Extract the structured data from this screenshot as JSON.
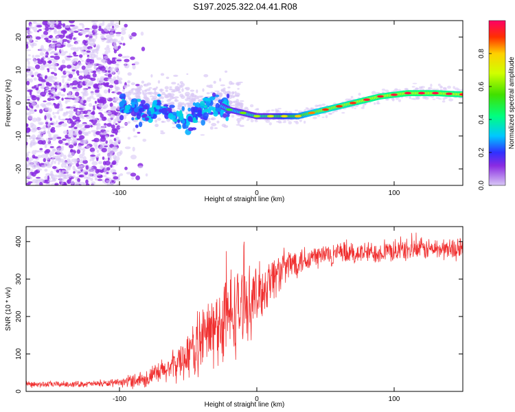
{
  "title": "S197.2025.322.04.41.R08",
  "colors": {
    "snr_line": "#f03030",
    "scatter": "#8a2be2",
    "axis": "#000000"
  },
  "chart_data": [
    {
      "type": "heatmap",
      "xlabel": "Height of straight line (km)",
      "ylabel": "Frequency (Hz)",
      "xlim": [
        -168,
        150
      ],
      "ylim": [
        -25,
        25
      ],
      "x_ticks": [
        -100,
        0,
        100
      ],
      "y_ticks": [
        -20,
        -10,
        0,
        10,
        20
      ],
      "x_tick_labels": [
        "-100",
        "0",
        "100"
      ],
      "y_tick_labels": [
        "-20",
        "-10",
        "0",
        "10",
        "20"
      ],
      "colorbar": {
        "label": "Normalized spectral amplitude",
        "range": [
          0,
          1
        ],
        "ticks": [
          0.0,
          0.2,
          0.4,
          0.6,
          0.8
        ],
        "tick_labels": [
          "0.0",
          "0.2",
          "0.4",
          "0.6",
          "0.8"
        ],
        "colormap": "rainbow"
      },
      "ridge_line": {
        "x": [
          -168,
          -100,
          -90,
          -80,
          -70,
          -60,
          -50,
          -40,
          -30,
          -20,
          -10,
          0,
          10,
          20,
          30,
          40,
          50,
          60,
          70,
          80,
          90,
          100,
          110,
          120,
          130,
          140,
          150
        ],
        "frequency": [
          0,
          0,
          -2,
          -3,
          -1,
          -4,
          -5,
          -2,
          0,
          -2,
          -3,
          -4,
          -4,
          -4,
          -4,
          -3,
          -2,
          -1,
          0,
          1,
          2,
          2.5,
          3,
          3,
          3,
          2.8,
          2.6
        ],
        "amplitude": [
          0.1,
          0.2,
          0.3,
          0.35,
          0.35,
          0.4,
          0.35,
          0.4,
          0.3,
          0.5,
          0.6,
          0.65,
          0.7,
          0.75,
          0.8,
          0.85,
          0.9,
          0.9,
          0.92,
          0.95,
          0.95,
          0.96,
          0.97,
          0.97,
          0.97,
          0.96,
          0.95
        ]
      }
    },
    {
      "type": "line",
      "xlabel": "Height of straight line (km)",
      "ylabel": "SNR (10 * v/v)",
      "xlim": [
        -168,
        150
      ],
      "ylim": [
        0,
        440
      ],
      "x_ticks": [
        -100,
        0,
        100
      ],
      "y_ticks": [
        0,
        100,
        200,
        300,
        400
      ],
      "x_tick_labels": [
        "-100",
        "0",
        "100"
      ],
      "y_tick_labels": [
        "0",
        "100",
        "200",
        "300",
        "400"
      ],
      "envelope": {
        "x": [
          -168,
          -120,
          -100,
          -90,
          -80,
          -70,
          -60,
          -50,
          -40,
          -30,
          -20,
          -10,
          0,
          10,
          20,
          30,
          50,
          80,
          100,
          120,
          150
        ],
        "mean": [
          18,
          20,
          22,
          30,
          35,
          50,
          70,
          100,
          140,
          170,
          200,
          230,
          250,
          300,
          330,
          350,
          365,
          370,
          375,
          380,
          380
        ],
        "noise_amplitude": [
          10,
          10,
          12,
          25,
          30,
          40,
          50,
          80,
          110,
          130,
          160,
          120,
          100,
          80,
          60,
          50,
          40,
          35,
          35,
          35,
          35
        ]
      }
    }
  ]
}
